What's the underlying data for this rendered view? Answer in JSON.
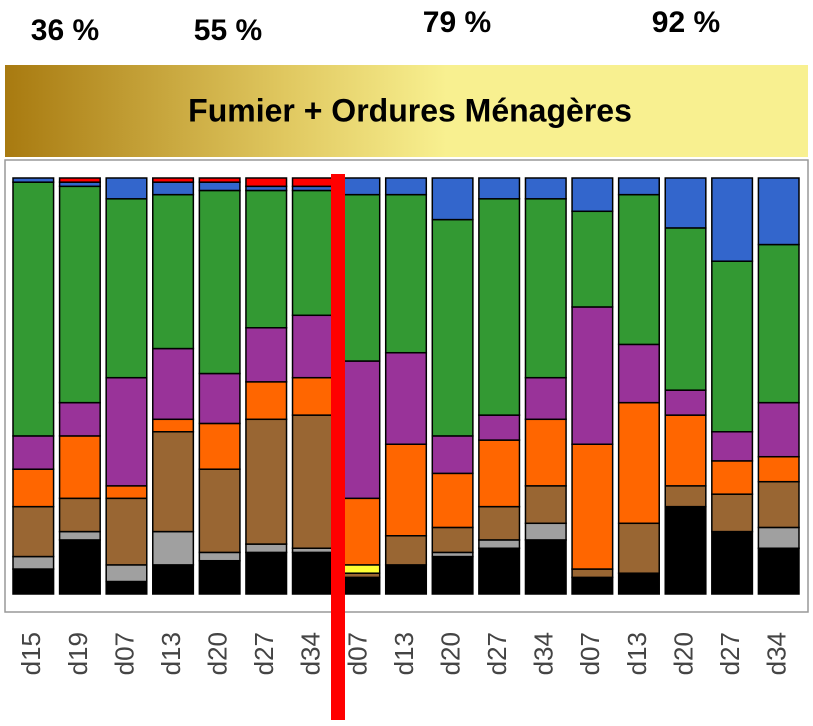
{
  "chart_data": {
    "type": "stacked_bar",
    "title": "Fumier + Ordures Ménagères",
    "annotations": [
      "36 %",
      "55 %",
      "79 %",
      "92 %"
    ],
    "categories": [
      "d15",
      "d19",
      "d07",
      "d13",
      "d20",
      "d27",
      "d34",
      "d07",
      "d13",
      "d20",
      "d27",
      "d34",
      "d07",
      "d13",
      "d20",
      "d27",
      "d34"
    ],
    "ylim": [
      0,
      100
    ],
    "series": [
      {
        "color": "#000000",
        "values": [
          6,
          13,
          3,
          7,
          8,
          10,
          10,
          4,
          7,
          9,
          11,
          13,
          4,
          5,
          21,
          15,
          11
        ]
      },
      {
        "color": "#a0a0a0",
        "values": [
          3,
          2,
          4,
          8,
          2,
          2,
          1,
          0,
          0,
          1,
          2,
          4,
          0,
          0,
          0,
          0,
          5
        ]
      },
      {
        "color": "#996633",
        "values": [
          12,
          8,
          16,
          24,
          20,
          30,
          32,
          1,
          7,
          6,
          8,
          9,
          2,
          12,
          5,
          9,
          11
        ]
      },
      {
        "color": "#ffff33",
        "values": [
          0,
          0,
          0,
          0,
          0,
          0,
          0,
          2,
          0,
          0,
          0,
          0,
          0,
          0,
          0,
          0,
          0
        ]
      },
      {
        "color": "#ff6600",
        "values": [
          9,
          15,
          3,
          3,
          11,
          9,
          9,
          16,
          22,
          13,
          16,
          16,
          30,
          29,
          17,
          8,
          6
        ]
      },
      {
        "color": "#993399",
        "values": [
          8,
          8,
          26,
          17,
          12,
          13,
          15,
          33,
          22,
          9,
          6,
          10,
          33,
          14,
          6,
          7,
          13
        ]
      },
      {
        "color": "#339933",
        "values": [
          61,
          52,
          43,
          37,
          44,
          33,
          30,
          40,
          38,
          52,
          52,
          43,
          23,
          36,
          39,
          41,
          38
        ]
      },
      {
        "color": "#3366cc",
        "values": [
          1,
          1,
          5,
          3,
          2,
          1,
          1,
          4,
          4,
          10,
          5,
          5,
          8,
          4,
          12,
          20,
          16
        ]
      },
      {
        "color": "#ff0000",
        "values": [
          0,
          1,
          0,
          1,
          1,
          2,
          2,
          0,
          0,
          0,
          0,
          0,
          0,
          0,
          0,
          0,
          0
        ]
      }
    ]
  }
}
